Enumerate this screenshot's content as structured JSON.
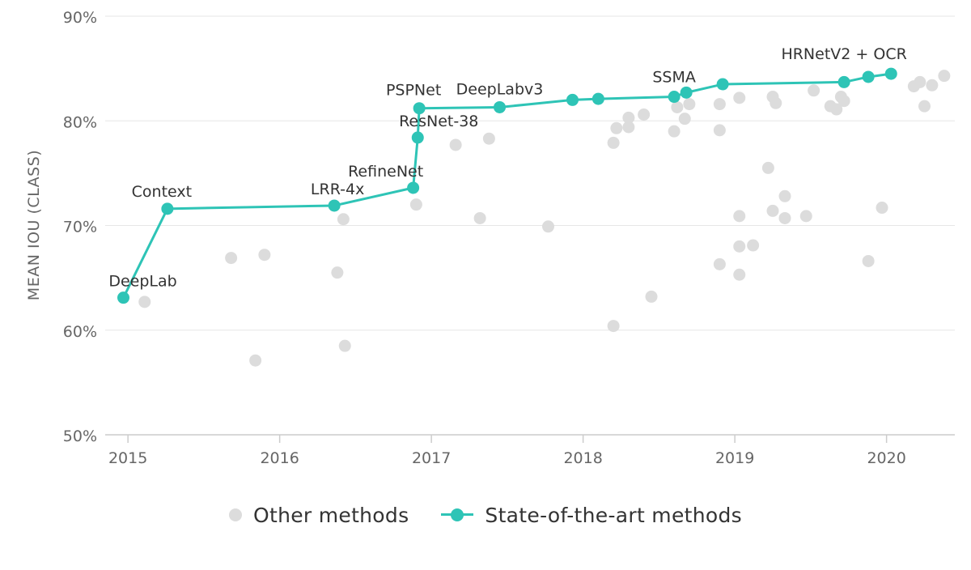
{
  "chart_data": {
    "type": "scatter",
    "xlabel": "",
    "ylabel": "MEAN IOU (CLASS)",
    "xlim": [
      2014.85,
      2020.45
    ],
    "ylim": [
      50,
      90
    ],
    "xticks": [
      2015,
      2016,
      2017,
      2018,
      2019,
      2020
    ],
    "yticks": [
      50,
      60,
      70,
      80,
      90
    ],
    "ytick_labels": [
      "50%",
      "60%",
      "70%",
      "80%",
      "90%"
    ],
    "grid": "horizontal",
    "legend_position": "bottom",
    "series": [
      {
        "name": "Other methods",
        "kind": "scatter",
        "color": "#dcdcdc",
        "points": [
          [
            2015.11,
            62.7
          ],
          [
            2015.68,
            66.9
          ],
          [
            2015.84,
            57.1
          ],
          [
            2015.9,
            67.2
          ],
          [
            2016.38,
            65.5
          ],
          [
            2016.42,
            70.6
          ],
          [
            2016.43,
            58.5
          ],
          [
            2016.9,
            72.0
          ],
          [
            2017.16,
            77.7
          ],
          [
            2017.32,
            70.7
          ],
          [
            2017.38,
            78.3
          ],
          [
            2017.77,
            69.9
          ],
          [
            2018.2,
            77.9
          ],
          [
            2018.2,
            60.4
          ],
          [
            2018.22,
            79.3
          ],
          [
            2018.3,
            80.3
          ],
          [
            2018.3,
            79.4
          ],
          [
            2018.4,
            80.6
          ],
          [
            2018.45,
            63.2
          ],
          [
            2018.6,
            79.0
          ],
          [
            2018.62,
            81.3
          ],
          [
            2018.67,
            80.2
          ],
          [
            2018.7,
            81.6
          ],
          [
            2018.9,
            81.6
          ],
          [
            2018.9,
            79.1
          ],
          [
            2018.9,
            66.3
          ],
          [
            2019.03,
            82.2
          ],
          [
            2019.03,
            70.9
          ],
          [
            2019.03,
            68.0
          ],
          [
            2019.03,
            65.3
          ],
          [
            2019.12,
            68.1
          ],
          [
            2019.22,
            75.5
          ],
          [
            2019.25,
            82.3
          ],
          [
            2019.25,
            71.4
          ],
          [
            2019.27,
            81.7
          ],
          [
            2019.33,
            72.8
          ],
          [
            2019.33,
            70.7
          ],
          [
            2019.47,
            70.9
          ],
          [
            2019.52,
            82.9
          ],
          [
            2019.63,
            81.4
          ],
          [
            2019.67,
            81.1
          ],
          [
            2019.7,
            82.3
          ],
          [
            2019.72,
            81.9
          ],
          [
            2019.88,
            66.6
          ],
          [
            2019.97,
            71.7
          ],
          [
            2020.18,
            83.3
          ],
          [
            2020.22,
            83.7
          ],
          [
            2020.25,
            81.4
          ],
          [
            2020.3,
            83.4
          ],
          [
            2020.38,
            84.3
          ]
        ]
      },
      {
        "name": "State-of-the-art methods",
        "kind": "line",
        "color": "#2ec4b6",
        "points": [
          {
            "x": 2014.97,
            "y": 63.1,
            "label": "DeepLab"
          },
          {
            "x": 2015.26,
            "y": 71.6,
            "label": "Context"
          },
          {
            "x": 2016.36,
            "y": 71.9,
            "label": "LRR-4x"
          },
          {
            "x": 2016.88,
            "y": 73.6,
            "label": "RefineNet"
          },
          {
            "x": 2016.91,
            "y": 78.4,
            "label": "ResNet-38"
          },
          {
            "x": 2016.92,
            "y": 81.2,
            "label": "PSPNet"
          },
          {
            "x": 2017.45,
            "y": 81.3,
            "label": "DeepLabv3"
          },
          {
            "x": 2017.93,
            "y": 82.0,
            "label": ""
          },
          {
            "x": 2018.1,
            "y": 82.1,
            "label": ""
          },
          {
            "x": 2018.6,
            "y": 82.3,
            "label": "SSMA"
          },
          {
            "x": 2018.68,
            "y": 82.7,
            "label": ""
          },
          {
            "x": 2018.92,
            "y": 83.5,
            "label": ""
          },
          {
            "x": 2019.72,
            "y": 83.7,
            "label": ""
          },
          {
            "x": 2019.88,
            "y": 84.2,
            "label": "HRNetV2 + OCR"
          },
          {
            "x": 2020.03,
            "y": 84.5,
            "label": ""
          }
        ]
      }
    ]
  },
  "legend": {
    "items": [
      {
        "label": "Other methods",
        "color": "#dcdcdc"
      },
      {
        "label": "State-of-the-art methods",
        "color": "#2ec4b6"
      }
    ]
  }
}
